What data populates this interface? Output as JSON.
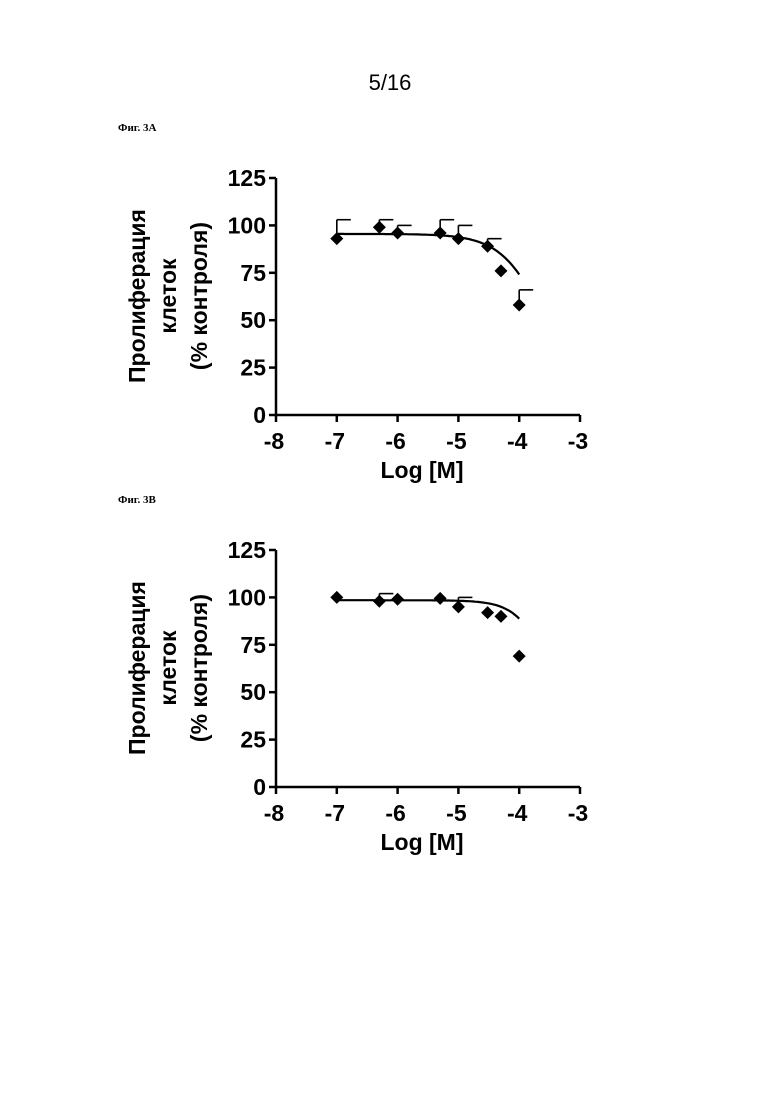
{
  "page": {
    "number": "5/16"
  },
  "figures": [
    {
      "label": "Фиг. 3А"
    },
    {
      "label": "Фиг. 3В"
    }
  ],
  "chart_data": [
    {
      "type": "scatter",
      "title": "",
      "xlabel": "Log [M]",
      "ylabel_lines": [
        "Пролиферация",
        "клеток",
        "(% контроля)"
      ],
      "xlim": [
        -8,
        -3
      ],
      "ylim": [
        0,
        125
      ],
      "xticks": [
        "-8",
        "-7",
        "-6",
        "-5",
        "-4",
        "-3"
      ],
      "yticks": [
        "0",
        "25",
        "50",
        "75",
        "100",
        "125"
      ],
      "grid": false,
      "legend": "none",
      "points": [
        {
          "x": -7.0,
          "y": 93,
          "err": 10
        },
        {
          "x": -6.3,
          "y": 99,
          "err": 4
        },
        {
          "x": -6.0,
          "y": 96,
          "err": 4
        },
        {
          "x": -5.3,
          "y": 96,
          "err": 7
        },
        {
          "x": -5.0,
          "y": 93,
          "err": 7
        },
        {
          "x": -4.52,
          "y": 89,
          "err": 4
        },
        {
          "x": -4.3,
          "y": 76,
          "err": 0
        },
        {
          "x": -4.0,
          "y": 58,
          "err": 8
        }
      ],
      "fit": {
        "top": 95.5,
        "bottom": 0,
        "logec50": -3.55,
        "hill": 1.2
      },
      "marker_color": "#000000"
    },
    {
      "type": "scatter",
      "title": "",
      "xlabel": "Log [M]",
      "ylabel_lines": [
        "Пролиферация",
        "клеток",
        "(% контроля)"
      ],
      "xlim": [
        -8,
        -3
      ],
      "ylim": [
        0,
        125
      ],
      "xticks": [
        "-8",
        "-7",
        "-6",
        "-5",
        "-4",
        "-3"
      ],
      "yticks": [
        "0",
        "25",
        "50",
        "75",
        "100",
        "125"
      ],
      "grid": false,
      "legend": "none",
      "points": [
        {
          "x": -7.0,
          "y": 100,
          "err": 0
        },
        {
          "x": -6.3,
          "y": 98,
          "err": 4
        },
        {
          "x": -6.0,
          "y": 99,
          "err": 0
        },
        {
          "x": -5.3,
          "y": 99.5,
          "err": 0
        },
        {
          "x": -5.0,
          "y": 95,
          "err": 5
        },
        {
          "x": -4.52,
          "y": 92,
          "err": 0
        },
        {
          "x": -4.3,
          "y": 90,
          "err": 0
        },
        {
          "x": -4.0,
          "y": 69,
          "err": 0
        }
      ],
      "fit": {
        "top": 98.5,
        "bottom": 0,
        "logec50": -3.4,
        "hill": 1.6
      },
      "marker_color": "#000000"
    }
  ]
}
